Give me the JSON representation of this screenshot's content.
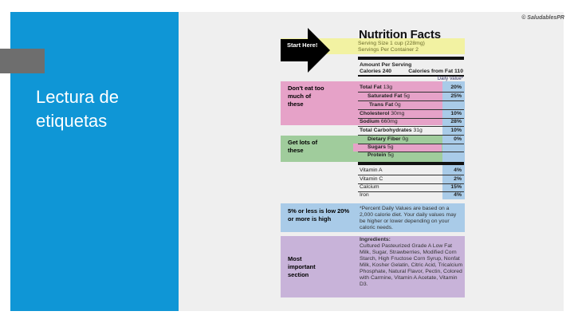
{
  "slide": {
    "title": "Lectura de etiquetas",
    "copyright": "© SaludablesPR"
  },
  "guide": {
    "start": "Start Here!",
    "dont_eat": "Don't eat too much of these",
    "get_lots": "Get lots of these",
    "percent_rule": "5% or less is low 20% or more is high",
    "important": "Most important section"
  },
  "label": {
    "title": "Nutrition Facts",
    "serving_size": "Serving Size 1 cup (228mg)",
    "servings_per_container": "Servings Per Container 2",
    "amount_per_serving": "Amount Per Serving",
    "calories": "Calories 240",
    "calories_from_fat": "Calories from Fat 110",
    "daily_value_header": "Daily Value*",
    "nutrients": [
      {
        "name": "Total Fat",
        "amount": "13g",
        "pct": "20%"
      },
      {
        "name": "Saturated Fat",
        "amount": "5g",
        "pct": "25%"
      },
      {
        "name": "Trans Fat",
        "amount": "0g",
        "pct": ""
      },
      {
        "name": "Cholesterol",
        "amount": "30mg",
        "pct": "10%"
      },
      {
        "name": "Sodium",
        "amount": "660mg",
        "pct": "28%"
      },
      {
        "name": "Total Carbohydrates",
        "amount": "31g",
        "pct": "10%"
      },
      {
        "name": "Dietary Fiber",
        "amount": "0g",
        "pct": "0%"
      },
      {
        "name": "Sugars",
        "amount": "5g",
        "pct": ""
      },
      {
        "name": "Protein",
        "amount": "5g",
        "pct": ""
      }
    ],
    "vitamins": [
      {
        "name": "Vitamin A",
        "pct": "4%"
      },
      {
        "name": "Vitamin C",
        "pct": "2%"
      },
      {
        "name": "Calcium",
        "pct": "15%"
      },
      {
        "name": "Iron",
        "pct": "4%"
      }
    ],
    "footnote": "*Percent Daily Values are based on a 2,000 calorie diet. Your daily values may be higher or lower depending on your caloric needs.",
    "ingredients_title": "Ingredients:",
    "ingredients": "Cultured Pasteurized Grade A Low Fat Milk, Sugar, Strawberries, Modified Corn Starch, High Fructose Corn Syrup, Nonfat Milk, Kosher Gelatin, Citric Acid, Tricalcium Phosphate, Natural Flavor, Pectin, Colored with Carmine, Vitamin A Acetate, Vitamin D3."
  }
}
